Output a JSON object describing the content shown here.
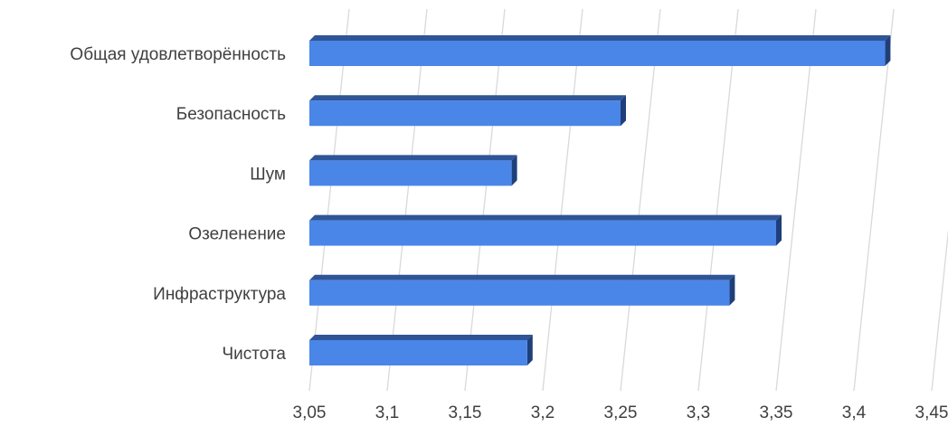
{
  "chart_data": {
    "type": "bar",
    "orientation": "horizontal",
    "style": "3d",
    "categories": [
      "Общая удовлетворённость",
      "Безопасность",
      "Шум",
      "Озеленение",
      "Инфраструктура",
      "Чистота"
    ],
    "values": [
      3.42,
      3.25,
      3.18,
      3.35,
      3.32,
      3.19
    ],
    "xlim": [
      3.05,
      3.45
    ],
    "x_ticks": [
      3.05,
      3.1,
      3.15,
      3.2,
      3.25,
      3.3,
      3.35,
      3.4,
      3.45
    ],
    "x_tick_labels": [
      "3,05",
      "3,1",
      "3,15",
      "3,2",
      "3,25",
      "3,3",
      "3,35",
      "3,4",
      "3,45"
    ],
    "grid": "vertical",
    "legend": "none",
    "title": "",
    "xlabel": "",
    "ylabel": "",
    "colors": {
      "bar_front": "#4a86e8",
      "bar_top": "#2f5597",
      "bar_side": "#1f3f7a",
      "grid": "#d9d9d9",
      "text": "#404040"
    }
  }
}
